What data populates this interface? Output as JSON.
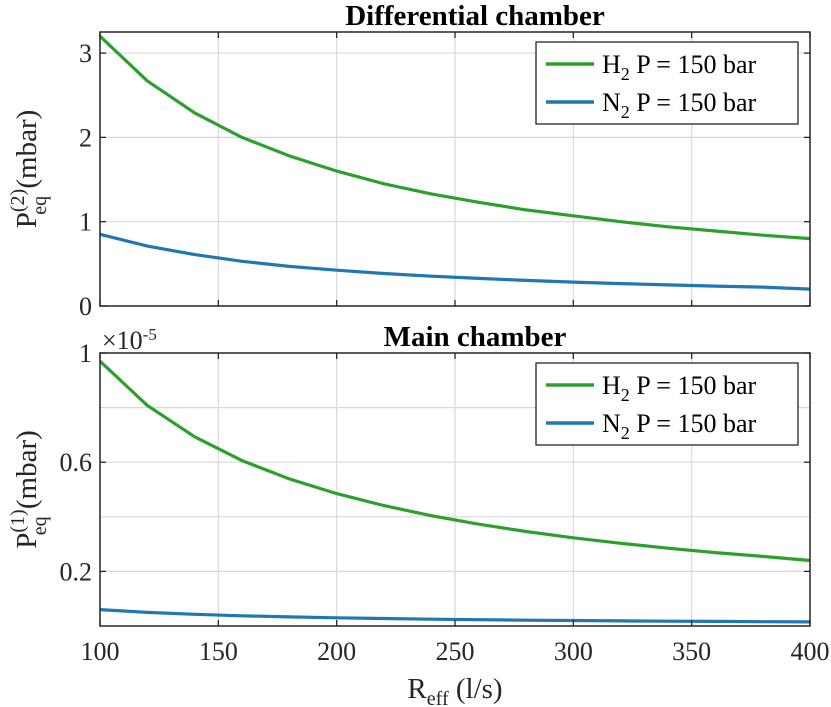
{
  "chart_data": [
    {
      "type": "line",
      "title": "Differential chamber",
      "ylabel": {
        "base": "P",
        "sup": "(2)",
        "sub": "eq",
        "unit": " (mbar)"
      },
      "xlim": [
        100,
        400
      ],
      "ylim": [
        0,
        3.25
      ],
      "xticks": [
        100,
        150,
        200,
        250,
        300,
        350,
        400
      ],
      "yticks": [
        0,
        1,
        2,
        3
      ],
      "ytick_labels": [
        "0",
        "1",
        "2",
        "3"
      ],
      "grid": true,
      "legend": "top-right",
      "series": [
        {
          "name": {
            "base": "H",
            "sub": "2",
            "rest": " P = 150 bar"
          },
          "color": "#2ca02c",
          "x": [
            100,
            120,
            140,
            160,
            180,
            200,
            220,
            240,
            260,
            280,
            300,
            320,
            340,
            360,
            380,
            400
          ],
          "y": [
            3.2,
            2.67,
            2.29,
            2.0,
            1.78,
            1.6,
            1.45,
            1.33,
            1.23,
            1.14,
            1.07,
            1.0,
            0.94,
            0.89,
            0.84,
            0.8
          ]
        },
        {
          "name": {
            "base": "N",
            "sub": "2",
            "rest": " P = 150 bar"
          },
          "color": "#1f77b4",
          "x": [
            100,
            120,
            140,
            160,
            180,
            200,
            220,
            240,
            260,
            280,
            300,
            320,
            340,
            360,
            380,
            400
          ],
          "y": [
            0.85,
            0.71,
            0.61,
            0.53,
            0.47,
            0.425,
            0.386,
            0.354,
            0.327,
            0.304,
            0.283,
            0.266,
            0.25,
            0.236,
            0.224,
            0.2
          ]
        }
      ]
    },
    {
      "type": "line",
      "title": "Main chamber",
      "exponent_label": {
        "base": "×10",
        "sup": "-5"
      },
      "ylabel": {
        "base": "P",
        "sup": "(1)",
        "sub": "eq",
        "unit": " (mbar)"
      },
      "xlabel": {
        "base": "R",
        "sub": "eff",
        "unit": " (l/s)"
      },
      "xlim": [
        100,
        400
      ],
      "ylim": [
        0,
        1.0
      ],
      "xticks": [
        100,
        150,
        200,
        250,
        300,
        350,
        400
      ],
      "xtick_labels": [
        "100",
        "150",
        "200",
        "250",
        "300",
        "350",
        "400"
      ],
      "yticks": [
        0.2,
        0.6,
        1.0
      ],
      "ytick_labels": [
        "0.2",
        "0.6",
        "1"
      ],
      "yminor": [
        0.4,
        0.8
      ],
      "grid": true,
      "legend": "top-right",
      "series": [
        {
          "name": {
            "base": "H",
            "sub": "2",
            "rest": " P = 150 bar"
          },
          "color": "#2ca02c",
          "x": [
            100,
            120,
            140,
            160,
            180,
            200,
            220,
            240,
            260,
            280,
            300,
            320,
            340,
            360,
            380,
            400
          ],
          "y": [
            0.97,
            0.808,
            0.693,
            0.606,
            0.539,
            0.485,
            0.441,
            0.404,
            0.373,
            0.346,
            0.323,
            0.303,
            0.285,
            0.269,
            0.255,
            0.24
          ]
        },
        {
          "name": {
            "base": "N",
            "sub": "2",
            "rest": " P = 150 bar"
          },
          "color": "#1f77b4",
          "x": [
            100,
            120,
            140,
            160,
            180,
            200,
            220,
            240,
            260,
            280,
            300,
            320,
            340,
            360,
            380,
            400
          ],
          "y": [
            0.06,
            0.05,
            0.043,
            0.0375,
            0.0333,
            0.03,
            0.0273,
            0.025,
            0.023,
            0.0214,
            0.02,
            0.0188,
            0.0176,
            0.0167,
            0.0158,
            0.015
          ]
        }
      ]
    }
  ]
}
